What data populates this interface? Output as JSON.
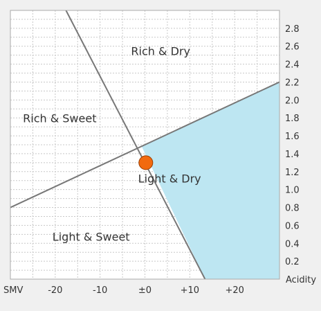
{
  "chart_data": {
    "type": "scatter",
    "title": "",
    "xlabel": "SMV",
    "ylabel": "Acidity",
    "xlim": [
      -30,
      30
    ],
    "ylim": [
      0,
      3.0
    ],
    "grid": true,
    "x_ticks": [
      {
        "value": -20,
        "label": "-20"
      },
      {
        "value": -10,
        "label": "-10"
      },
      {
        "value": 0,
        "label": "±0"
      },
      {
        "value": 10,
        "label": "+10"
      },
      {
        "value": 20,
        "label": "+20"
      }
    ],
    "y_ticks": [
      {
        "value": 0.2,
        "label": "0.2"
      },
      {
        "value": 0.4,
        "label": "0.4"
      },
      {
        "value": 0.6,
        "label": "0.6"
      },
      {
        "value": 0.8,
        "label": "0.8"
      },
      {
        "value": 1.0,
        "label": "1.0"
      },
      {
        "value": 1.2,
        "label": "1.2"
      },
      {
        "value": 1.4,
        "label": "1.4"
      },
      {
        "value": 1.6,
        "label": "1.6"
      },
      {
        "value": 1.8,
        "label": "1.8"
      },
      {
        "value": 2.0,
        "label": "2.0"
      },
      {
        "value": 2.2,
        "label": "2.2"
      },
      {
        "value": 2.4,
        "label": "2.4"
      },
      {
        "value": 2.6,
        "label": "2.6"
      },
      {
        "value": 2.8,
        "label": "2.8"
      }
    ],
    "boundary_lines": [
      {
        "points": [
          [
            -30,
            0.8
          ],
          [
            30,
            2.2
          ]
        ]
      },
      {
        "points": [
          [
            -17.6,
            3.0
          ],
          [
            13.4,
            0
          ]
        ]
      }
    ],
    "shaded_region": {
      "region": "Light & Dry",
      "color": "#bde6f2",
      "points": [
        [
          -0.71,
          1.48
        ],
        [
          30,
          2.2
        ],
        [
          30,
          0
        ],
        [
          13.4,
          0
        ]
      ]
    },
    "regions": [
      {
        "label": "Rich & Dry",
        "x": 3.5,
        "y": 2.5
      },
      {
        "label": "Rich & Sweet",
        "x": -19,
        "y": 1.75
      },
      {
        "label": "Light & Dry",
        "x": 5.5,
        "y": 1.08
      },
      {
        "label": "Light & Sweet",
        "x": -12,
        "y": 0.43
      }
    ],
    "points": [
      {
        "x": 0.2,
        "y": 1.3,
        "color": "#f26a0f"
      }
    ],
    "colors": {
      "boundary": "#777777",
      "grid": "#c8c8c8",
      "plot_background": "#ffffff",
      "page_background": "#f0f0f0"
    }
  }
}
